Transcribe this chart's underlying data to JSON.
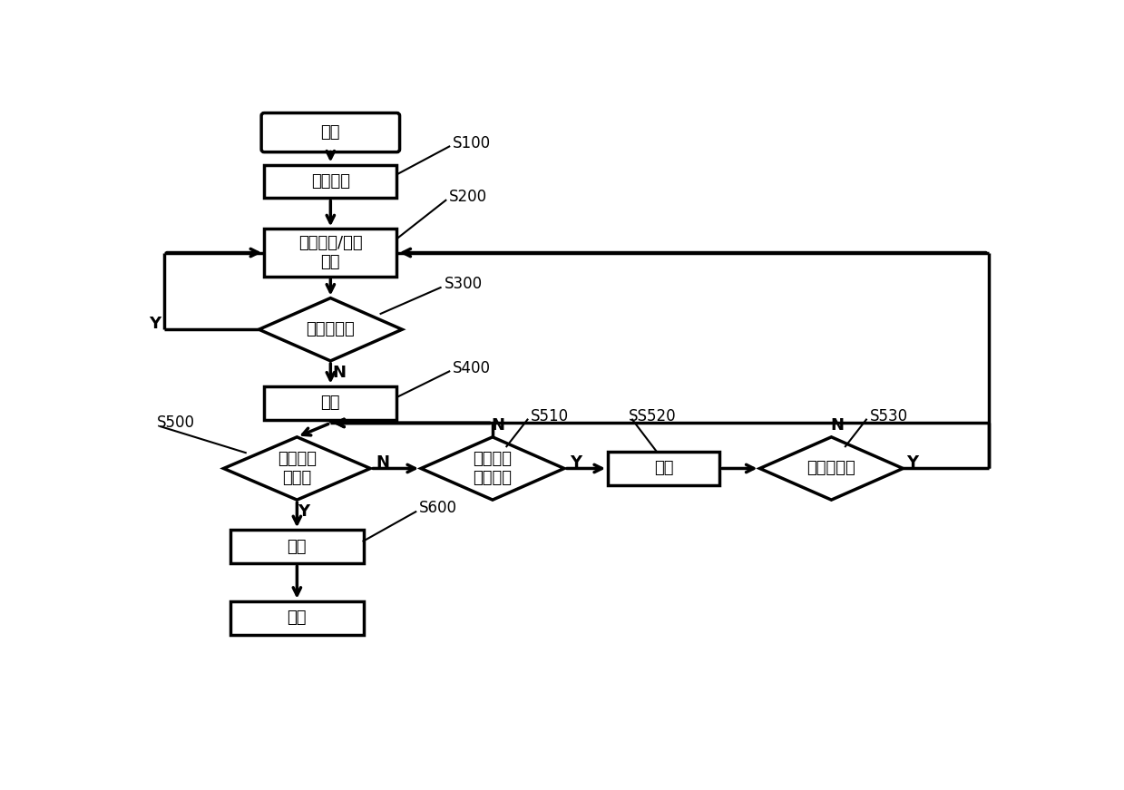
{
  "bg_color": "#ffffff",
  "line_color": "#000000",
  "text_color": "#000000",
  "fs_main": 13,
  "fs_label": 12,
  "lw": 2.5,
  "nodes": {
    "start": {
      "text": "开始"
    },
    "S100": {
      "text": "定时设定",
      "label": "S100"
    },
    "S200": {
      "text": "计时模式/状态\n设定",
      "label": "S200"
    },
    "S300": {
      "text": "无按键判断",
      "label": "S300"
    },
    "S400": {
      "text": "计时",
      "label": "S400"
    },
    "S500": {
      "text": "计时是否\n完成？",
      "label": "S500"
    },
    "S510": {
      "text": "查询按键\n触发判断",
      "label": "S510"
    },
    "S520": {
      "text": "查询",
      "label": "SS520"
    },
    "S530": {
      "text": "无按键判断",
      "label": "S530"
    },
    "S600": {
      "text": "执行",
      "label": "S600"
    },
    "end": {
      "text": "结束"
    }
  }
}
